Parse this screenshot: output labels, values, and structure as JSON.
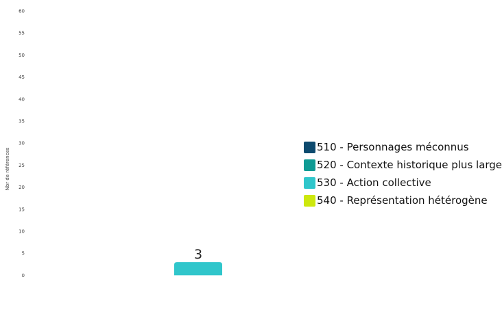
{
  "chart_data": {
    "type": "bar",
    "ylabel": "Nbr de références",
    "ylim": [
      0,
      60
    ],
    "yticks": [
      0,
      5,
      10,
      15,
      20,
      25,
      30,
      35,
      40,
      45,
      50,
      55,
      60
    ],
    "grid": false,
    "legend_position": "right",
    "series": [
      {
        "name": "510 - Personnages méconnus",
        "color": "#0d4a6e",
        "value": 0
      },
      {
        "name": "520 - Contexte historique plus large",
        "color": "#0f9b94",
        "value": 0
      },
      {
        "name": "530 - Action collective",
        "color": "#30c6cb",
        "value": 3,
        "label": "3"
      },
      {
        "name": "540 - Représentation hétérogène",
        "color": "#cde80d",
        "value": 0
      }
    ]
  }
}
